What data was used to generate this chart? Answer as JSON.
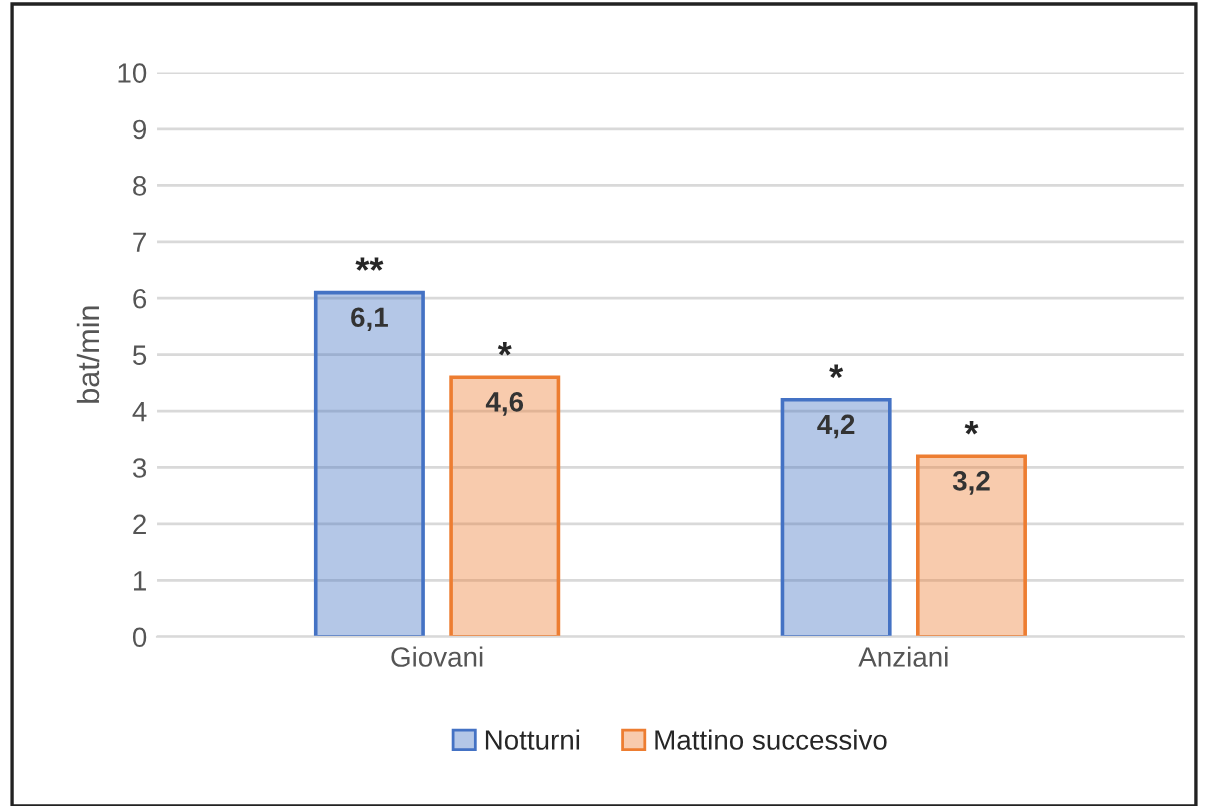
{
  "chart_data": {
    "type": "bar",
    "ylabel": "bat/min",
    "categories": [
      "Giovani",
      "Anziani"
    ],
    "series": [
      {
        "name": "Notturni",
        "color": "#4472c4",
        "values": [
          6.1,
          4.2
        ],
        "value_labels": [
          "6,1",
          "4,2"
        ]
      },
      {
        "name": "Mattino successivo",
        "color": "#ed7d31",
        "values": [
          4.6,
          3.2
        ],
        "value_labels": [
          "4,6",
          "3,2"
        ]
      }
    ],
    "annotations": [
      "**",
      "*",
      "*",
      "*"
    ],
    "ylim": [
      0,
      10
    ],
    "yticks": [
      0,
      1,
      2,
      3,
      4,
      5,
      6,
      7,
      8,
      9,
      10
    ],
    "grid": "y",
    "legend": "bottom"
  }
}
